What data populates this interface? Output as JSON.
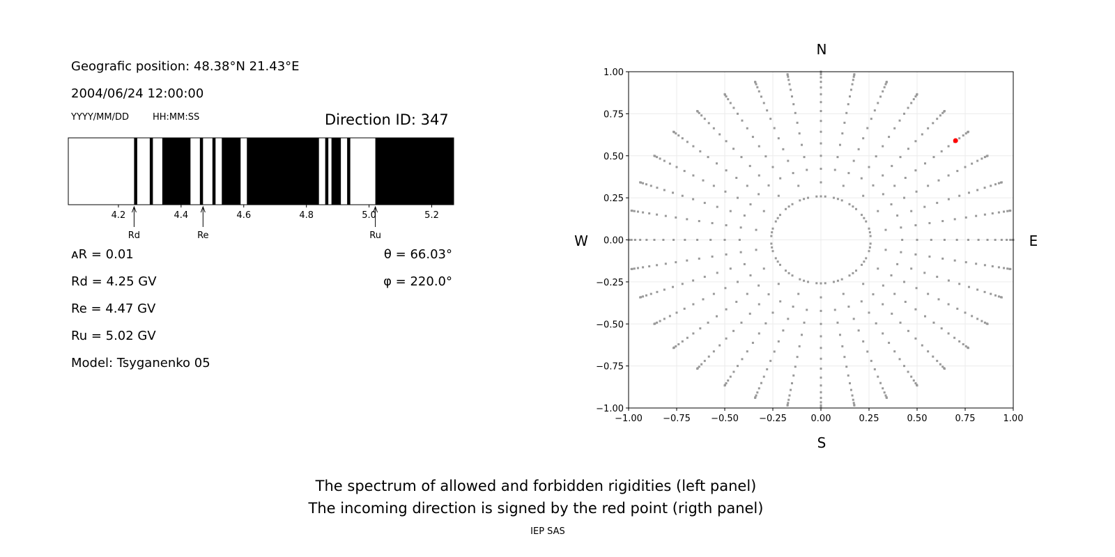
{
  "left_panel": {
    "position": "Geografic position: 48.38°N 21.43°E",
    "datetime": "2004/06/24 12:00:00",
    "date_format": "YYYY/MM/DD",
    "time_format": "HH:MM:SS",
    "direction_id": "Direction ID: 347",
    "delta_r": "ᴀR = 0.01",
    "rd": "Rd = 4.25 GV",
    "re": "Re = 4.47 GV",
    "ru": "Ru = 5.02 GV",
    "model": "Model: Tsyganenko 05",
    "theta": "θ = 66.03°",
    "phi": "φ = 220.0°"
  },
  "captions": {
    "line1": "The spectrum of allowed and forbidden rigidities (left panel)",
    "line2": "The incoming direction is signed by the red point (rigth panel)",
    "credit": "IEP SAS"
  },
  "chart_data": [
    {
      "type": "bar",
      "subtype": "spectrum",
      "xlim": [
        4.04,
        5.27
      ],
      "xticks": [
        "4.2",
        "4.4",
        "4.6",
        "4.8",
        "5.0",
        "5.2"
      ],
      "forbidden_color": "#000000",
      "allowed_color": "#ffffff",
      "forbidden_intervals": [
        [
          4.25,
          4.26
        ],
        [
          4.3,
          4.31
        ],
        [
          4.34,
          4.43
        ],
        [
          4.46,
          4.47
        ],
        [
          4.5,
          4.51
        ],
        [
          4.53,
          4.59
        ],
        [
          4.61,
          4.84
        ],
        [
          4.86,
          4.87
        ],
        [
          4.88,
          4.91
        ],
        [
          4.93,
          4.94
        ],
        [
          5.02,
          5.27
        ]
      ],
      "markers": [
        {
          "label": "Rd",
          "value": 4.25
        },
        {
          "label": "Re",
          "value": 4.47
        },
        {
          "label": "Ru",
          "value": 5.02
        }
      ]
    },
    {
      "type": "scatter",
      "xlim": [
        -1,
        1
      ],
      "ylim": [
        -1,
        1
      ],
      "grid": true,
      "xticks": [
        "−1.00",
        "−0.75",
        "−0.50",
        "−0.25",
        "0.00",
        "0.25",
        "0.50",
        "0.75",
        "1.00"
      ],
      "yticks": [
        "−1.00",
        "−0.75",
        "−0.50",
        "−0.25",
        "0.00",
        "0.25",
        "0.50",
        "0.75",
        "1.00"
      ],
      "compass": {
        "n": "N",
        "s": "S",
        "e": "E",
        "w": "W"
      },
      "grid_points": {
        "azimuth_step_deg": 10,
        "zenith_deg": [
          15,
          20,
          25,
          30,
          35,
          40,
          45,
          50,
          55,
          60,
          65,
          70,
          75,
          80,
          85,
          90
        ],
        "color": "#999999"
      },
      "highlight": {
        "x": 0.7,
        "y": 0.59,
        "color": "#ff0000"
      }
    }
  ]
}
